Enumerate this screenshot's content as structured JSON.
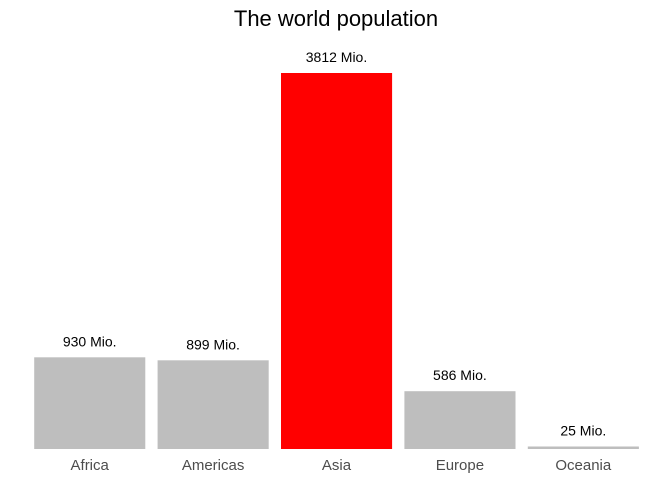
{
  "chart_data": {
    "type": "bar",
    "title": "The world population",
    "xlabel": "",
    "ylabel": "",
    "categories": [
      "Africa",
      "Americas",
      "Asia",
      "Europe",
      "Oceania"
    ],
    "values": [
      930,
      899,
      3812,
      586,
      25
    ],
    "data_labels": [
      "930 Mio.",
      "899 Mio.",
      "3812 Mio.",
      "586 Mio.",
      "25 Mio."
    ],
    "bar_colors": [
      "#bebebe",
      "#bebebe",
      "#ff0000",
      "#bebebe",
      "#bebebe"
    ],
    "highlight_color": "#ff0000",
    "base_color": "#bebebe",
    "ylim": [
      0,
      3812
    ],
    "grid": false,
    "legend": "none"
  }
}
